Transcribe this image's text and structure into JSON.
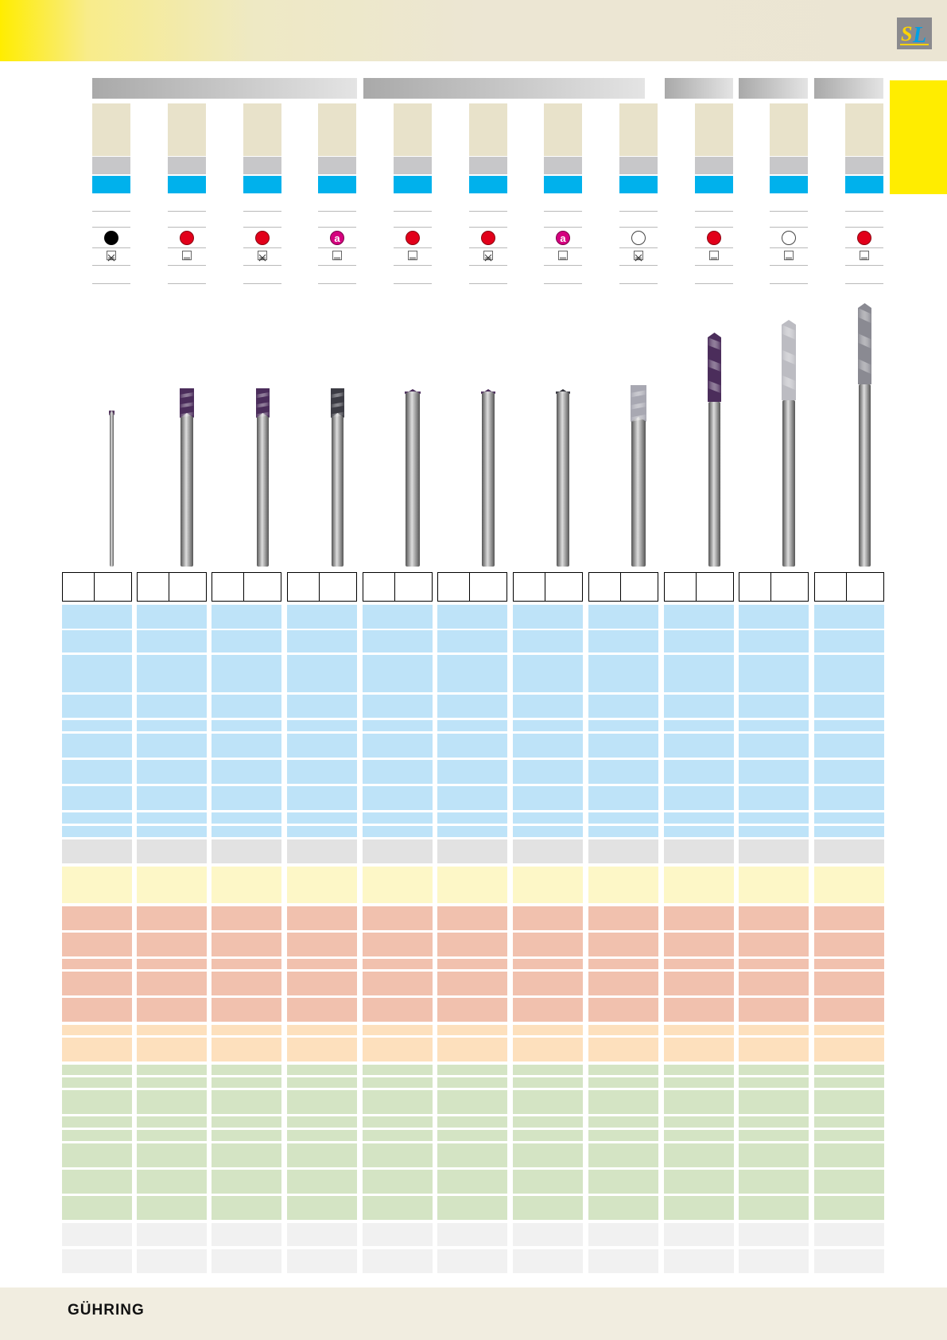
{
  "header": {
    "logo": "SL"
  },
  "footer": {
    "brand": "GÜHRING",
    "page_number": ""
  },
  "groups": [
    {
      "label": ""
    },
    {
      "label": ""
    },
    {
      "label": ""
    },
    {
      "label": ""
    },
    {
      "label": ""
    }
  ],
  "tools": [
    {
      "symbol": "black-dot",
      "symbol_text": "",
      "shank": "shank-x-icon"
    },
    {
      "symbol": "red-dot",
      "symbol_text": "",
      "shank": "shank-plain-icon"
    },
    {
      "symbol": "red-dot",
      "symbol_text": "",
      "shank": "shank-x-icon"
    },
    {
      "symbol": "magenta-dot",
      "symbol_text": "a",
      "shank": "shank-plain-icon"
    },
    {
      "symbol": "red-dot",
      "symbol_text": "",
      "shank": "shank-plain-icon"
    },
    {
      "symbol": "red-dot",
      "symbol_text": "",
      "shank": "shank-x-icon"
    },
    {
      "symbol": "magenta-dot",
      "symbol_text": "a",
      "shank": "shank-plain-icon"
    },
    {
      "symbol": "white-dot",
      "symbol_text": "",
      "shank": "shank-x-icon"
    },
    {
      "symbol": "red-dot",
      "symbol_text": "",
      "shank": "shank-plain-icon"
    },
    {
      "symbol": "white-dot",
      "symbol_text": "",
      "shank": "shank-plain-icon"
    },
    {
      "symbol": "red-dot",
      "symbol_text": "",
      "shank": "shank-plain-icon"
    }
  ],
  "colors": {
    "header_yellow": "#ffed00",
    "cyan_strip": "#00b1ec",
    "material_blue": "#bee3f8",
    "material_gray": "#e2e2e2",
    "material_yellow": "#fdf7c7",
    "material_red": "#f1c1ae",
    "material_orange": "#fde0bd",
    "material_green": "#d4e4c4",
    "material_lightgray": "#f1f1f1"
  }
}
